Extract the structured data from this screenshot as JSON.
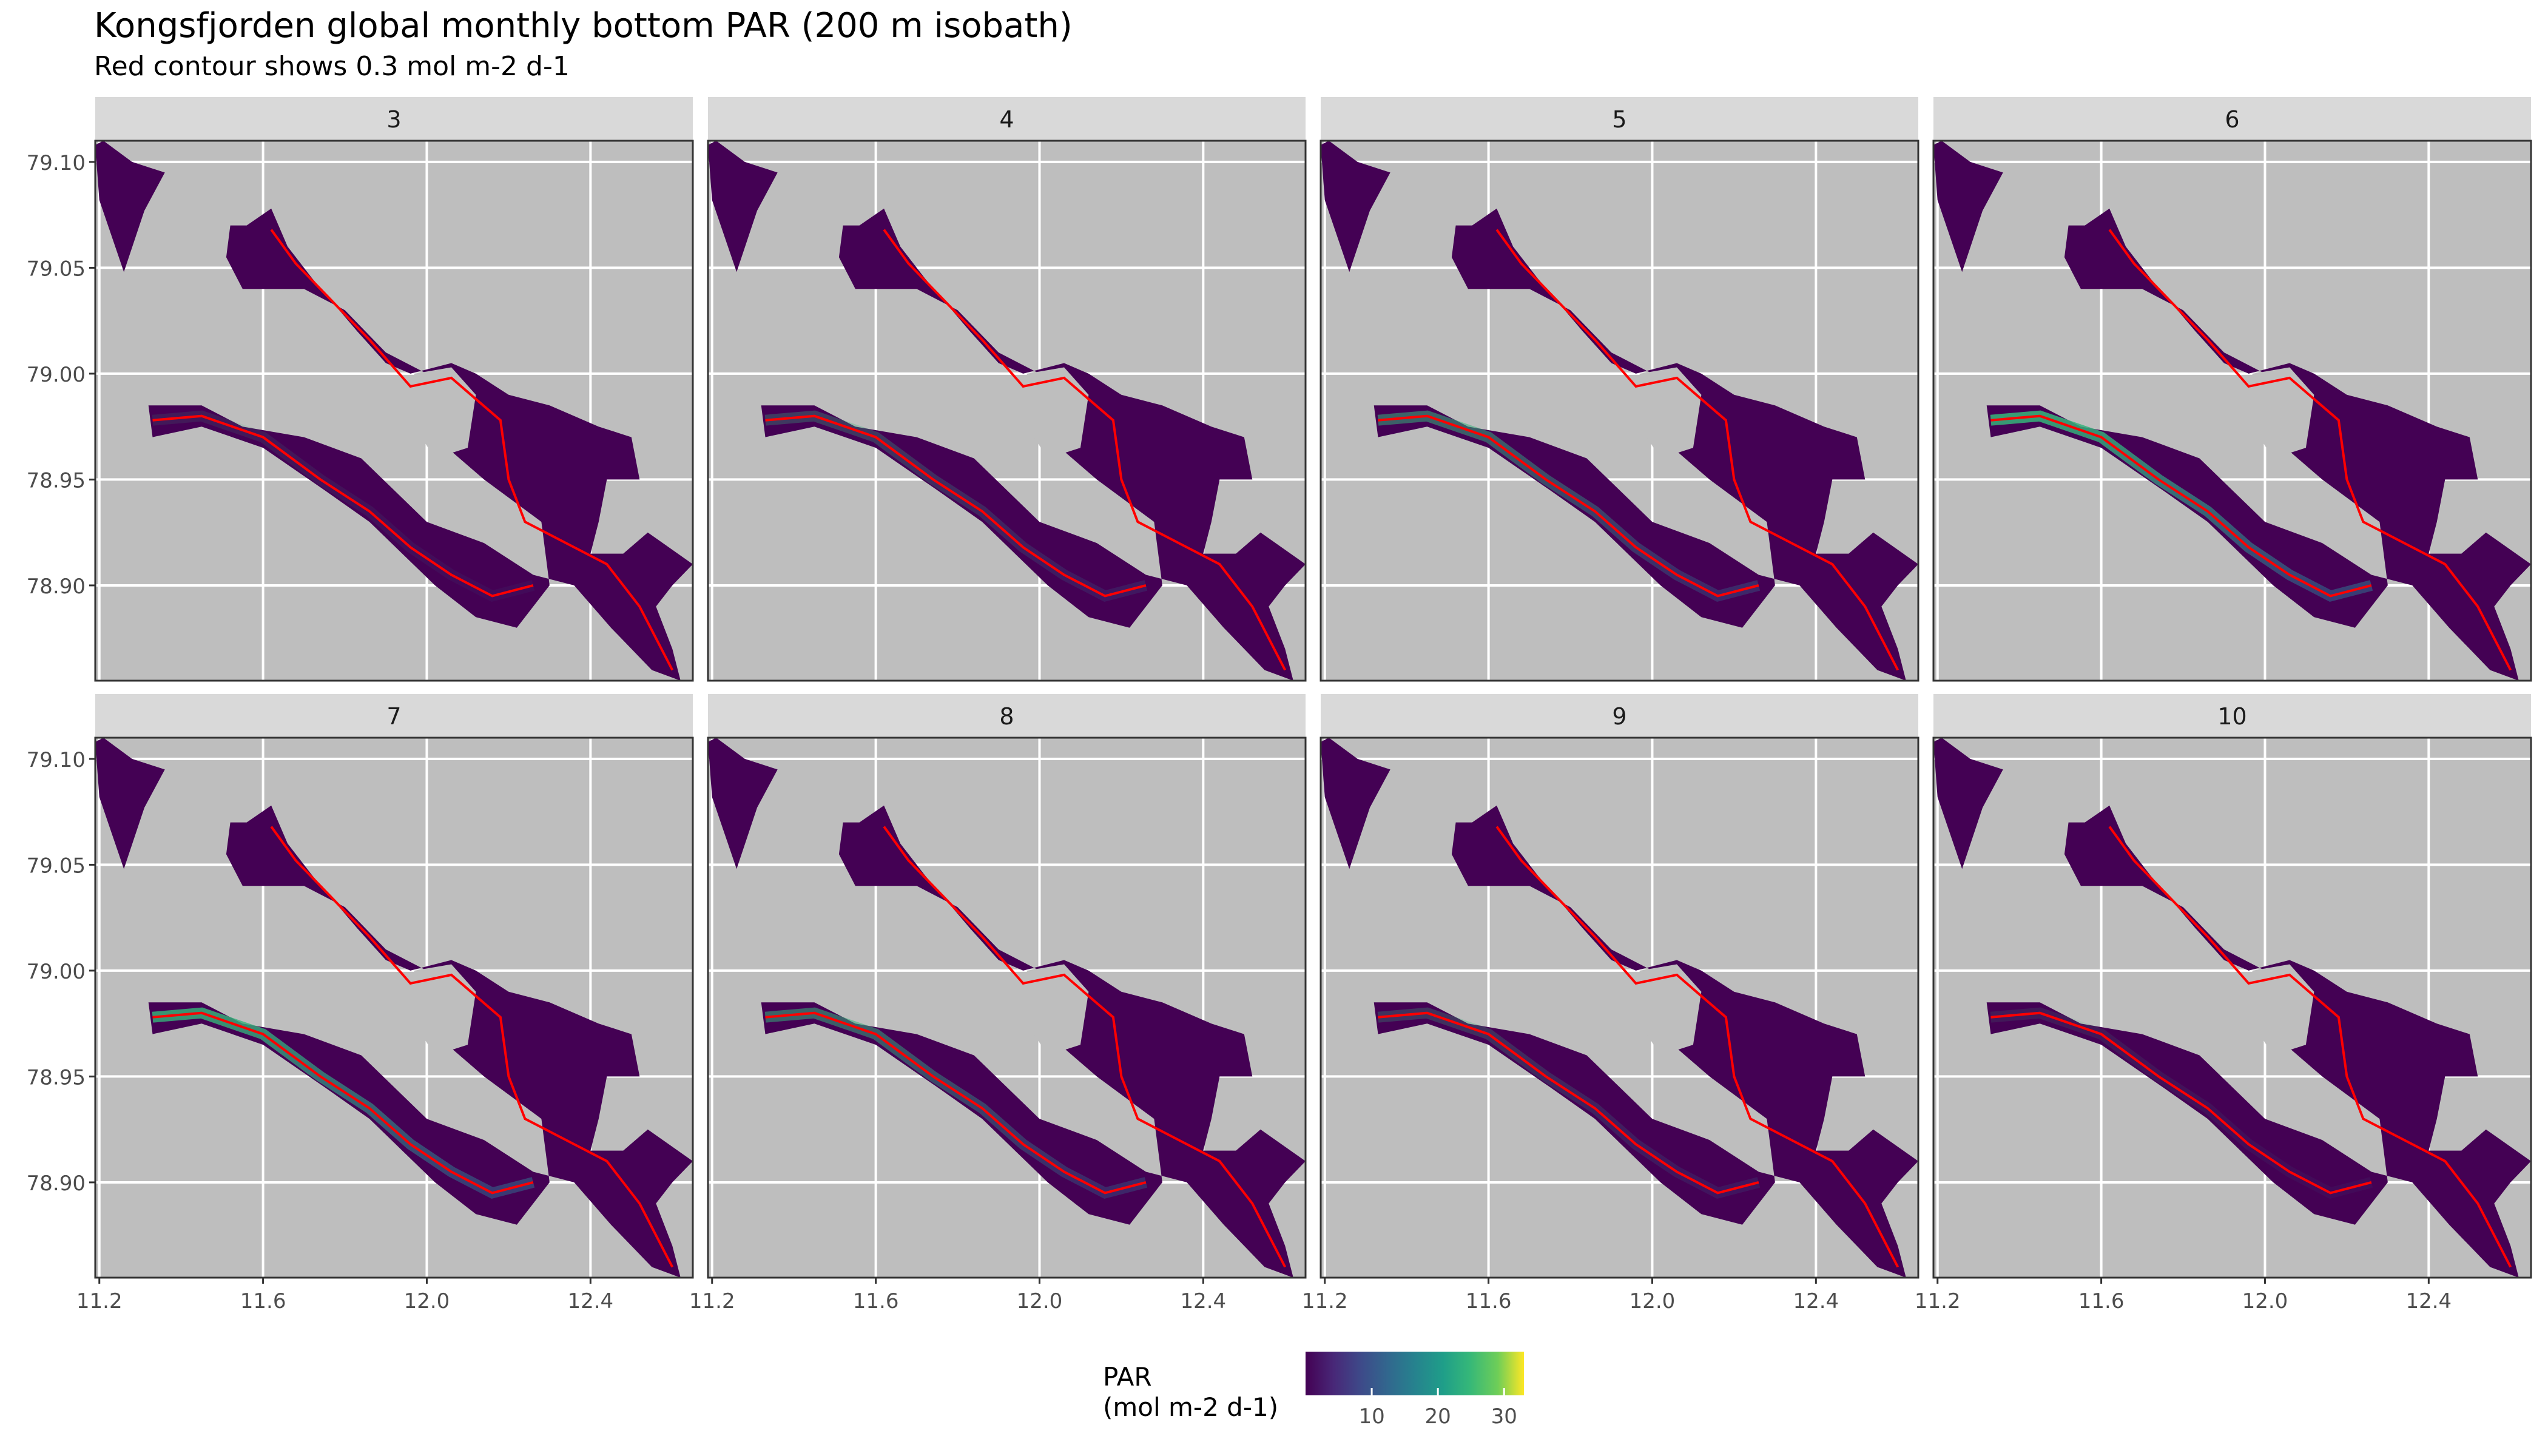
{
  "chart_data": {
    "type": "heatmap",
    "title": "Kongsfjorden global monthly bottom PAR (200 m isobath)",
    "subtitle": "Red contour shows 0.3 mol m-2 d-1",
    "panels": [
      "3",
      "4",
      "5",
      "6",
      "7",
      "8",
      "9",
      "10"
    ],
    "x_ticks": [
      "11.2",
      "11.6",
      "12.0",
      "12.4"
    ],
    "y_ticks": [
      "79.10",
      "79.05",
      "79.00",
      "78.95",
      "78.90"
    ],
    "xlim": [
      11.19,
      12.65
    ],
    "ylim": [
      78.855,
      79.11
    ],
    "contour_level": 0.3,
    "legend": {
      "title": "PAR\n(mol m-2 d-1)",
      "ticks": [
        "10",
        "20",
        "30"
      ],
      "range": [
        0,
        33
      ],
      "colormap": "viridis"
    },
    "colors": {
      "panel_bg": "#bebebe",
      "strip_bg": "#d9d9d9",
      "fjord": "#440154",
      "contour": "#ff0000",
      "grid": "#ffffff"
    }
  }
}
